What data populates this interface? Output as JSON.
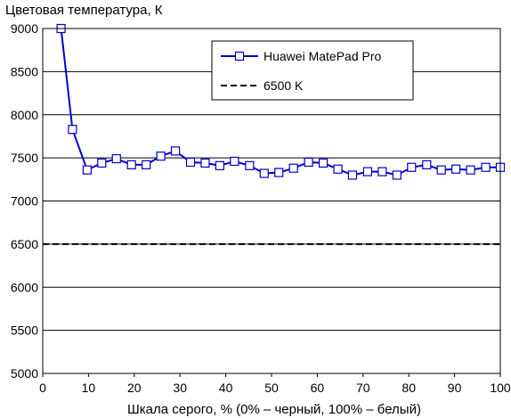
{
  "chart_data": {
    "type": "line",
    "ylabel": "Цветовая температура, К",
    "xlabel": "Шкала серого, % (0% – черный, 100% – белый)",
    "xlim": [
      0,
      100
    ],
    "ylim": [
      5000,
      9000
    ],
    "xticks": [
      0,
      10,
      20,
      30,
      40,
      50,
      60,
      70,
      80,
      90,
      100
    ],
    "yticks": [
      5000,
      5500,
      6000,
      6500,
      7000,
      7500,
      8000,
      8500,
      9000
    ],
    "grid": "horizontal",
    "legend_position": "top-right",
    "series": [
      {
        "name": "Huawei MatePad Pro",
        "color": "#0000cc",
        "marker": "open-square",
        "x": [
          4,
          6.5,
          9.7,
          12.9,
          16.1,
          19.4,
          22.6,
          25.8,
          29,
          32.3,
          35.5,
          38.7,
          41.9,
          45.2,
          48.4,
          51.6,
          54.8,
          58.1,
          61.3,
          64.5,
          67.7,
          71,
          74.2,
          77.4,
          80.6,
          83.9,
          87.1,
          90.3,
          93.5,
          96.8,
          100
        ],
        "values": [
          9000,
          7830,
          7360,
          7440,
          7490,
          7420,
          7420,
          7520,
          7580,
          7450,
          7440,
          7410,
          7460,
          7410,
          7320,
          7330,
          7380,
          7450,
          7440,
          7370,
          7300,
          7340,
          7340,
          7300,
          7390,
          7420,
          7360,
          7370,
          7360,
          7390,
          7390
        ]
      },
      {
        "name": "6500 K",
        "color": "#000000",
        "style": "dashed",
        "x": [
          0,
          100
        ],
        "values": [
          6500,
          6500
        ]
      }
    ]
  }
}
